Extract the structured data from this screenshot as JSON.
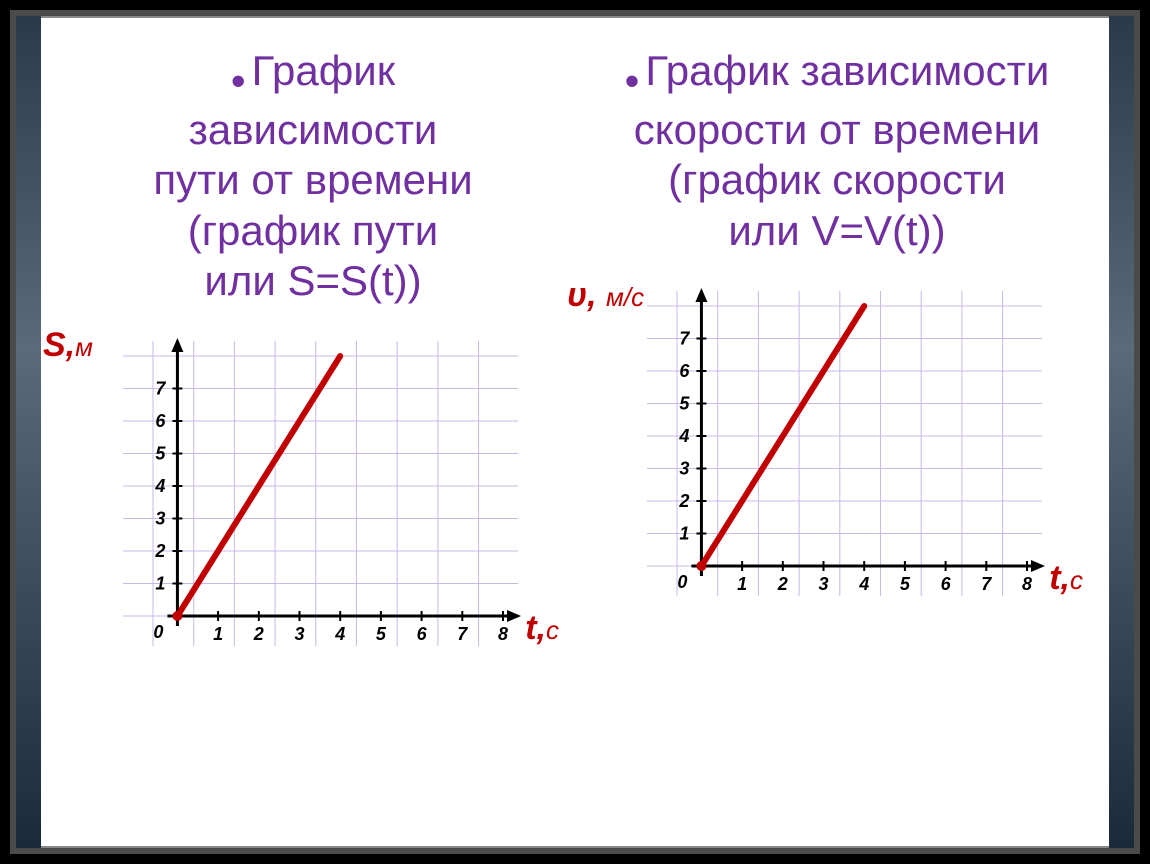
{
  "left": {
    "title_lines": [
      "График",
      "зависимости",
      "пути от времени",
      "(график пути",
      "или S=S(t))"
    ],
    "chart": {
      "type": "line",
      "y_label": "S,",
      "y_unit": "м",
      "x_label": "t,",
      "x_unit": "с",
      "y_ticks": [
        1,
        2,
        3,
        4,
        5,
        6,
        7
      ],
      "x_ticks": [
        1,
        2,
        3,
        4,
        5,
        6,
        7,
        8
      ],
      "xlim": [
        0,
        8.6
      ],
      "ylim": [
        0,
        8
      ],
      "grid_step": 1,
      "line_points": [
        [
          0.6,
          0
        ],
        [
          4.6,
          8
        ]
      ],
      "line_color": "#c00000",
      "line_width": 6,
      "axis_color": "#000000",
      "grid_color": "#c9b8e8",
      "background_color": "#ffffff",
      "origin_label": "0",
      "tick_fontsize": 18
    }
  },
  "right": {
    "title_lines": [
      "График зависимости",
      "скорости от времени",
      "(график скорости",
      "или V=V(t))"
    ],
    "chart": {
      "type": "line",
      "y_label": "υ,",
      "y_unit": "м/с",
      "x_label": "t,",
      "x_unit": "с",
      "y_ticks": [
        1,
        2,
        3,
        4,
        5,
        6,
        7
      ],
      "x_ticks": [
        1,
        2,
        3,
        4,
        5,
        6,
        7,
        8
      ],
      "xlim": [
        0,
        8.6
      ],
      "ylim": [
        0,
        8
      ],
      "grid_step": 1,
      "line_points": [
        [
          0.6,
          0
        ],
        [
          4.6,
          8
        ]
      ],
      "line_color": "#c00000",
      "line_width": 6,
      "axis_color": "#000000",
      "grid_color": "#c9b8e8",
      "background_color": "#ffffff",
      "origin_label": "0",
      "tick_fontsize": 18
    }
  },
  "colors": {
    "title": "#7030a0",
    "axis_label": "#c00000"
  }
}
